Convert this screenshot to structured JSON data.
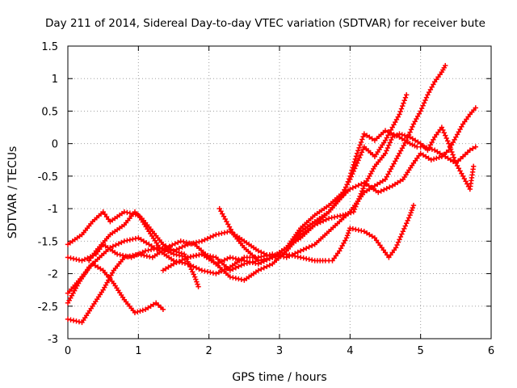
{
  "chart_data": {
    "type": "scatter",
    "title": "Day 211 of 2014, Sidereal Day-to-day VTEC variation (SDTVAR) for receiver bute",
    "xlabel": "GPS time / hours",
    "ylabel": "SDTVAR / TECUs",
    "xlim": [
      0,
      6
    ],
    "ylim": [
      -3,
      1.5
    ],
    "xticks": [
      0,
      1,
      2,
      3,
      4,
      5,
      6
    ],
    "yticks": [
      -3,
      -2.5,
      -2,
      -1.5,
      -1,
      -0.5,
      0,
      0.5,
      1,
      1.5
    ],
    "xtick_labels": [
      "0",
      "1",
      "2",
      "3",
      "4",
      "5",
      "6"
    ],
    "ytick_labels": [
      "-3",
      "-2.5",
      "-2",
      "-1.5",
      "-1",
      "-0.5",
      "0",
      "0.5",
      "1",
      "1.5"
    ],
    "grid": true,
    "legend": "none",
    "marker": "+",
    "color": "#ff0000",
    "series": [
      {
        "points": [
          [
            0.0,
            -1.55
          ],
          [
            0.2,
            -1.4
          ],
          [
            0.35,
            -1.2
          ],
          [
            0.5,
            -1.05
          ],
          [
            0.6,
            -1.2
          ],
          [
            0.8,
            -1.05
          ],
          [
            1.0,
            -1.1
          ],
          [
            1.15,
            -1.35
          ],
          [
            1.3,
            -1.6
          ],
          [
            1.5,
            -1.7
          ],
          [
            1.7,
            -1.75
          ],
          [
            1.9,
            -1.7
          ],
          [
            2.1,
            -1.75
          ],
          [
            2.3,
            -1.95
          ],
          [
            2.5,
            -1.85
          ],
          [
            2.7,
            -1.8
          ],
          [
            2.9,
            -1.75
          ],
          [
            3.1,
            -1.6
          ],
          [
            3.3,
            -1.35
          ],
          [
            3.5,
            -1.2
          ],
          [
            3.7,
            -1.05
          ],
          [
            3.9,
            -0.8
          ],
          [
            4.0,
            -0.5
          ],
          [
            4.1,
            -0.15
          ],
          [
            4.2,
            0.15
          ],
          [
            4.35,
            0.05
          ],
          [
            4.5,
            0.2
          ],
          [
            4.7,
            0.1
          ],
          [
            4.85,
            0.0
          ],
          [
            4.95,
            -0.05
          ],
          [
            5.05,
            -0.05
          ],
          [
            5.2,
            -0.1
          ],
          [
            5.35,
            -0.2
          ],
          [
            5.5,
            -0.3
          ],
          [
            5.6,
            -0.5
          ],
          [
            5.7,
            -0.7
          ],
          [
            5.75,
            -0.35
          ]
        ]
      },
      {
        "points": [
          [
            0.0,
            -1.75
          ],
          [
            0.2,
            -1.8
          ],
          [
            0.4,
            -1.7
          ],
          [
            0.5,
            -1.55
          ],
          [
            0.7,
            -1.7
          ],
          [
            0.9,
            -1.75
          ],
          [
            1.1,
            -1.65
          ],
          [
            1.3,
            -1.6
          ],
          [
            1.5,
            -1.65
          ],
          [
            1.7,
            -1.55
          ],
          [
            1.9,
            -1.5
          ],
          [
            2.1,
            -1.4
          ],
          [
            2.3,
            -1.35
          ],
          [
            2.5,
            -1.5
          ],
          [
            2.7,
            -1.65
          ],
          [
            2.9,
            -1.75
          ],
          [
            3.1,
            -1.6
          ],
          [
            3.3,
            -1.3
          ],
          [
            3.5,
            -1.1
          ],
          [
            3.7,
            -0.95
          ],
          [
            3.9,
            -0.75
          ],
          [
            4.0,
            -0.55
          ],
          [
            4.1,
            -0.3
          ],
          [
            4.2,
            -0.05
          ],
          [
            4.35,
            -0.2
          ],
          [
            4.5,
            0.05
          ],
          [
            4.6,
            0.25
          ],
          [
            4.7,
            0.45
          ],
          [
            4.8,
            0.75
          ]
        ]
      },
      {
        "points": [
          [
            0.0,
            -2.45
          ],
          [
            0.15,
            -2.15
          ],
          [
            0.3,
            -1.9
          ],
          [
            0.45,
            -1.75
          ],
          [
            0.6,
            -1.6
          ],
          [
            0.8,
            -1.5
          ],
          [
            1.0,
            -1.45
          ],
          [
            1.15,
            -1.55
          ],
          [
            1.3,
            -1.65
          ],
          [
            1.5,
            -1.8
          ],
          [
            1.7,
            -1.85
          ],
          [
            1.9,
            -1.95
          ],
          [
            2.1,
            -2.0
          ],
          [
            2.3,
            -1.9
          ],
          [
            2.5,
            -1.75
          ],
          [
            2.7,
            -1.75
          ],
          [
            2.9,
            -1.7
          ],
          [
            3.1,
            -1.75
          ],
          [
            3.3,
            -1.65
          ],
          [
            3.5,
            -1.55
          ],
          [
            3.7,
            -1.35
          ],
          [
            3.85,
            -1.2
          ],
          [
            4.0,
            -1.05
          ],
          [
            4.2,
            -0.75
          ],
          [
            4.35,
            -0.65
          ],
          [
            4.5,
            -0.55
          ],
          [
            4.6,
            -0.35
          ],
          [
            4.7,
            -0.15
          ],
          [
            4.8,
            0.05
          ],
          [
            4.9,
            0.3
          ],
          [
            5.0,
            0.5
          ],
          [
            5.1,
            0.75
          ],
          [
            5.2,
            0.95
          ],
          [
            5.3,
            1.1
          ],
          [
            5.35,
            1.2
          ]
        ]
      },
      {
        "points": [
          [
            0.0,
            -2.7
          ],
          [
            0.2,
            -2.75
          ],
          [
            0.35,
            -2.5
          ],
          [
            0.5,
            -2.25
          ],
          [
            0.65,
            -1.95
          ],
          [
            0.8,
            -1.75
          ],
          [
            1.0,
            -1.7
          ],
          [
            1.2,
            -1.75
          ],
          [
            1.4,
            -1.6
          ],
          [
            1.6,
            -1.5
          ],
          [
            1.8,
            -1.55
          ],
          [
            1.95,
            -1.7
          ],
          [
            2.1,
            -1.85
          ],
          [
            2.3,
            -1.75
          ],
          [
            2.5,
            -1.8
          ],
          [
            2.7,
            -1.85
          ],
          [
            2.9,
            -1.75
          ],
          [
            3.1,
            -1.6
          ],
          [
            3.3,
            -1.45
          ],
          [
            3.5,
            -1.25
          ],
          [
            3.7,
            -1.05
          ],
          [
            3.85,
            -0.85
          ],
          [
            4.0,
            -0.7
          ],
          [
            4.2,
            -0.6
          ],
          [
            4.4,
            -0.75
          ],
          [
            4.6,
            -0.65
          ],
          [
            4.75,
            -0.55
          ],
          [
            4.9,
            -0.3
          ],
          [
            5.0,
            -0.15
          ],
          [
            5.15,
            -0.25
          ],
          [
            5.3,
            -0.2
          ],
          [
            5.4,
            -0.1
          ],
          [
            5.5,
            0.1
          ],
          [
            5.6,
            0.3
          ],
          [
            5.7,
            0.45
          ],
          [
            5.78,
            0.55
          ]
        ]
      },
      {
        "points": [
          [
            0.0,
            -2.3
          ],
          [
            0.2,
            -2.05
          ],
          [
            0.35,
            -1.85
          ],
          [
            0.5,
            -1.95
          ],
          [
            0.65,
            -2.15
          ],
          [
            0.8,
            -2.4
          ],
          [
            0.95,
            -2.6
          ],
          [
            1.1,
            -2.55
          ],
          [
            1.25,
            -2.45
          ],
          [
            1.35,
            -2.55
          ]
        ]
      },
      {
        "points": [
          [
            0.3,
            -1.8
          ],
          [
            0.4,
            -1.65
          ],
          [
            0.6,
            -1.4
          ],
          [
            0.8,
            -1.25
          ],
          [
            0.95,
            -1.05
          ],
          [
            1.05,
            -1.15
          ],
          [
            1.2,
            -1.35
          ],
          [
            1.35,
            -1.55
          ],
          [
            1.5,
            -1.65
          ],
          [
            1.65,
            -1.7
          ],
          [
            1.8,
            -2.05
          ],
          [
            1.85,
            -2.2
          ]
        ]
      },
      {
        "points": [
          [
            2.15,
            -1.0
          ],
          [
            2.25,
            -1.2
          ],
          [
            2.35,
            -1.4
          ],
          [
            2.5,
            -1.6
          ],
          [
            2.7,
            -1.8
          ],
          [
            2.9,
            -1.75
          ],
          [
            3.1,
            -1.7
          ],
          [
            3.3,
            -1.75
          ],
          [
            3.5,
            -1.8
          ],
          [
            3.65,
            -1.8
          ],
          [
            3.75,
            -1.8
          ],
          [
            3.85,
            -1.65
          ],
          [
            3.95,
            -1.45
          ],
          [
            4.0,
            -1.3
          ],
          [
            4.2,
            -1.35
          ],
          [
            4.35,
            -1.45
          ],
          [
            4.45,
            -1.6
          ],
          [
            4.55,
            -1.75
          ],
          [
            4.65,
            -1.6
          ],
          [
            4.75,
            -1.35
          ],
          [
            4.85,
            -1.1
          ],
          [
            4.9,
            -0.95
          ]
        ]
      },
      {
        "points": [
          [
            1.35,
            -1.95
          ],
          [
            1.5,
            -1.85
          ],
          [
            1.7,
            -1.75
          ],
          [
            1.9,
            -1.7
          ],
          [
            2.1,
            -1.85
          ],
          [
            2.3,
            -2.05
          ],
          [
            2.5,
            -2.1
          ],
          [
            2.7,
            -1.95
          ],
          [
            2.9,
            -1.85
          ],
          [
            3.1,
            -1.65
          ],
          [
            3.3,
            -1.4
          ],
          [
            3.5,
            -1.25
          ],
          [
            3.7,
            -1.15
          ],
          [
            3.9,
            -1.1
          ],
          [
            4.05,
            -1.05
          ],
          [
            4.2,
            -0.65
          ],
          [
            4.35,
            -0.35
          ],
          [
            4.5,
            -0.15
          ],
          [
            4.6,
            0.1
          ],
          [
            4.7,
            0.15
          ],
          [
            4.85,
            0.1
          ],
          [
            5.0,
            0.0
          ],
          [
            5.1,
            -0.1
          ],
          [
            5.2,
            0.1
          ],
          [
            5.3,
            0.25
          ],
          [
            5.4,
            0.0
          ],
          [
            5.5,
            -0.3
          ],
          [
            5.6,
            -0.2
          ],
          [
            5.7,
            -0.1
          ],
          [
            5.78,
            -0.05
          ]
        ]
      }
    ]
  }
}
